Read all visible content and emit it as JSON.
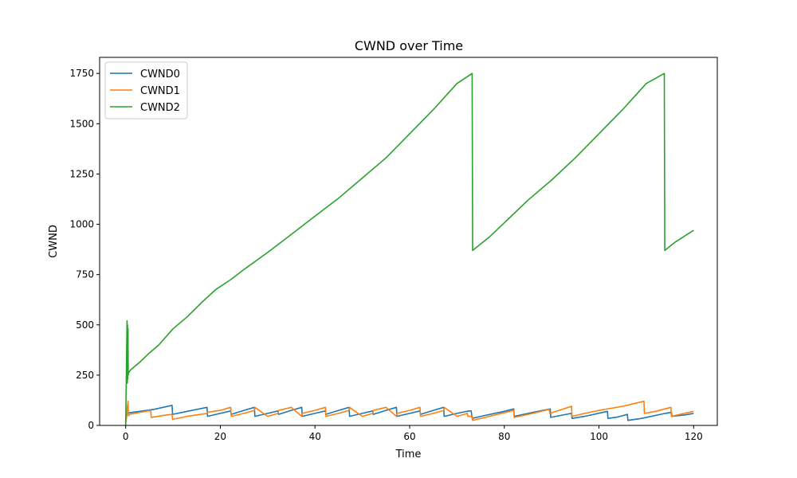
{
  "chart_data": {
    "type": "line",
    "title": "CWND over Time",
    "xlabel": "Time",
    "ylabel": "CWND",
    "xlim": [
      -5.5,
      125
    ],
    "ylim": [
      0,
      1830
    ],
    "xticks": [
      0,
      20,
      40,
      60,
      80,
      100,
      120
    ],
    "yticks": [
      0,
      250,
      500,
      750,
      1000,
      1250,
      1500,
      1750
    ],
    "grid": false,
    "legend": "top-left",
    "series": [
      {
        "name": "CWND0",
        "color": "#1f77b4",
        "x": [
          0,
          0.3,
          0.5,
          3,
          6,
          9.8,
          9.9,
          13,
          17.2,
          17.3,
          20,
          22.2,
          22.3,
          25,
          27.2,
          27.3,
          30,
          32.2,
          32.3,
          35,
          37.2,
          37.3,
          40,
          42.2,
          42.3,
          45,
          47.2,
          47.3,
          50,
          52.2,
          52.3,
          55,
          57.2,
          57.3,
          60,
          62.2,
          62.3,
          65,
          67.2,
          67.3,
          70,
          72.5,
          73,
          73.2,
          76,
          80,
          82,
          82.1,
          86,
          89.7,
          89.8,
          92,
          94.2,
          94.3,
          97,
          101.8,
          101.9,
          104,
          106,
          106.1,
          109,
          114,
          115.3,
          115.4,
          118,
          120
        ],
        "y": [
          15,
          60,
          62,
          70,
          80,
          100,
          55,
          70,
          90,
          45,
          60,
          72,
          55,
          75,
          90,
          45,
          60,
          72,
          55,
          75,
          90,
          45,
          60,
          72,
          55,
          75,
          90,
          45,
          60,
          72,
          55,
          75,
          90,
          45,
          60,
          72,
          55,
          75,
          90,
          45,
          60,
          72,
          72,
          35,
          50,
          70,
          82,
          45,
          65,
          82,
          40,
          50,
          60,
          35,
          45,
          70,
          35,
          42,
          55,
          25,
          35,
          60,
          65,
          45,
          52,
          60
        ]
      },
      {
        "name": "CWND1",
        "color": "#ff7f0e",
        "x": [
          0,
          0.5,
          0.6,
          0.8,
          3,
          5.3,
          5.4,
          8,
          9.8,
          9.9,
          13,
          17.2,
          17.3,
          20,
          22.2,
          22.3,
          25,
          27.2,
          27.3,
          30,
          32.2,
          32.3,
          35,
          37.2,
          37.3,
          40,
          42.2,
          42.3,
          45,
          47.2,
          47.3,
          50,
          52.2,
          52.3,
          55,
          57.2,
          57.3,
          60,
          62.2,
          62.3,
          65,
          67.2,
          67.3,
          70,
          72.2,
          72.3,
          73.2,
          73.3,
          76,
          82,
          82.1,
          86,
          89.5,
          89.6,
          94.2,
          94.3,
          97,
          100,
          105,
          109.5,
          109.6,
          112,
          115.2,
          115.3,
          118,
          120
        ],
        "y": [
          10,
          120,
          48,
          55,
          65,
          75,
          40,
          50,
          55,
          30,
          45,
          60,
          65,
          75,
          90,
          45,
          60,
          75,
          90,
          45,
          60,
          75,
          90,
          45,
          60,
          75,
          90,
          45,
          60,
          75,
          90,
          45,
          60,
          75,
          90,
          45,
          60,
          75,
          90,
          45,
          60,
          75,
          90,
          45,
          60,
          45,
          45,
          25,
          40,
          75,
          40,
          60,
          80,
          60,
          95,
          45,
          60,
          75,
          95,
          120,
          60,
          70,
          90,
          45,
          60,
          70
        ]
      },
      {
        "name": "CWND2",
        "color": "#2ca02c",
        "x": [
          0,
          0.3,
          0.35,
          0.4,
          0.45,
          0.5,
          0.55,
          0.6,
          1,
          2,
          3,
          5,
          7,
          10,
          13,
          16,
          19,
          22.2,
          25,
          30,
          35,
          40,
          45,
          50,
          55,
          60,
          65,
          70,
          73.2,
          73.3,
          77,
          81,
          85,
          90,
          95,
          100,
          105,
          110,
          113.8,
          113.9,
          116,
          118,
          120
        ],
        "y": [
          0,
          520,
          210,
          500,
          230,
          480,
          250,
          260,
          275,
          295,
          315,
          360,
          400,
          480,
          540,
          610,
          675,
          725,
          775,
          860,
          950,
          1040,
          1130,
          1230,
          1330,
          1450,
          1570,
          1700,
          1750,
          870,
          940,
          1030,
          1120,
          1220,
          1330,
          1450,
          1570,
          1700,
          1750,
          870,
          910,
          940,
          970
        ]
      }
    ]
  }
}
